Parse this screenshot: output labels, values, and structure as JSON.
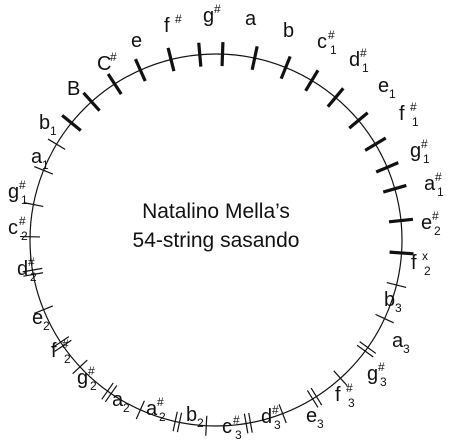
{
  "title_lines": [
    "Natalino Mella’s",
    "54-string sasando"
  ],
  "labels": [
    {
      "id": "g-sharp",
      "base": "g",
      "acc": "#",
      "sub": ""
    },
    {
      "id": "a",
      "base": "a",
      "acc": "",
      "sub": ""
    },
    {
      "id": "b",
      "base": "b",
      "acc": "",
      "sub": ""
    },
    {
      "id": "c-sharp-1",
      "base": "c",
      "acc": "#",
      "sub": "1"
    },
    {
      "id": "d-sharp-1",
      "base": "d",
      "acc": "#",
      "sub": "1"
    },
    {
      "id": "e-1",
      "base": "e",
      "acc": "",
      "sub": "1"
    },
    {
      "id": "f-sharp-1",
      "base": "f",
      "acc": "#",
      "sub": "1"
    },
    {
      "id": "g-sharp-1-right",
      "base": "g",
      "acc": "#",
      "sub": "1"
    },
    {
      "id": "a-sharp-1",
      "base": "a",
      "acc": "#",
      "sub": "1"
    },
    {
      "id": "e-sharp-2",
      "base": "e",
      "acc": "#",
      "sub": "2"
    },
    {
      "id": "f-x-2",
      "base": "f",
      "acc": "x",
      "sub": "2"
    },
    {
      "id": "b-3",
      "base": "b",
      "acc": "",
      "sub": "3"
    },
    {
      "id": "a-3",
      "base": "a",
      "acc": "",
      "sub": "3"
    },
    {
      "id": "g-sharp-3",
      "base": "g",
      "acc": "#",
      "sub": "3"
    },
    {
      "id": "f-sharp-3",
      "base": "f",
      "acc": "#",
      "sub": "3"
    },
    {
      "id": "e-3",
      "base": "e",
      "acc": "",
      "sub": "3"
    },
    {
      "id": "d-sharp-3",
      "base": "d",
      "acc": "#",
      "sub": "3"
    },
    {
      "id": "c-sharp-3",
      "base": "c",
      "acc": "#",
      "sub": "3"
    },
    {
      "id": "b-2",
      "base": "b",
      "acc": "",
      "sub": "2"
    },
    {
      "id": "a-sharp-2",
      "base": "a",
      "acc": "#",
      "sub": "2"
    },
    {
      "id": "a-2",
      "base": "a",
      "acc": "",
      "sub": "2"
    },
    {
      "id": "g-sharp-2",
      "base": "g",
      "acc": "#",
      "sub": "2"
    },
    {
      "id": "f-sharp-2",
      "base": "f",
      "acc": "#",
      "sub": "2"
    },
    {
      "id": "e-2",
      "base": "e",
      "acc": "",
      "sub": "2"
    },
    {
      "id": "d-sharp-2",
      "base": "d",
      "acc": "#",
      "sub": "2"
    },
    {
      "id": "c-sharp-2",
      "base": "c",
      "acc": "#",
      "sub": "2"
    },
    {
      "id": "g-sharp-1-left",
      "base": "g",
      "acc": "#",
      "sub": "1"
    },
    {
      "id": "a-1",
      "base": "a",
      "acc": "",
      "sub": "1"
    },
    {
      "id": "b-1",
      "base": "b",
      "acc": "",
      "sub": "1"
    },
    {
      "id": "B",
      "base": "B",
      "acc": "",
      "sub": ""
    },
    {
      "id": "C-sharp",
      "base": "C",
      "acc": "#",
      "sub": ""
    },
    {
      "id": "e",
      "base": "e",
      "acc": "",
      "sub": ""
    },
    {
      "id": "f-sharp",
      "base": "f",
      "acc": "#",
      "sub": ""
    }
  ]
}
